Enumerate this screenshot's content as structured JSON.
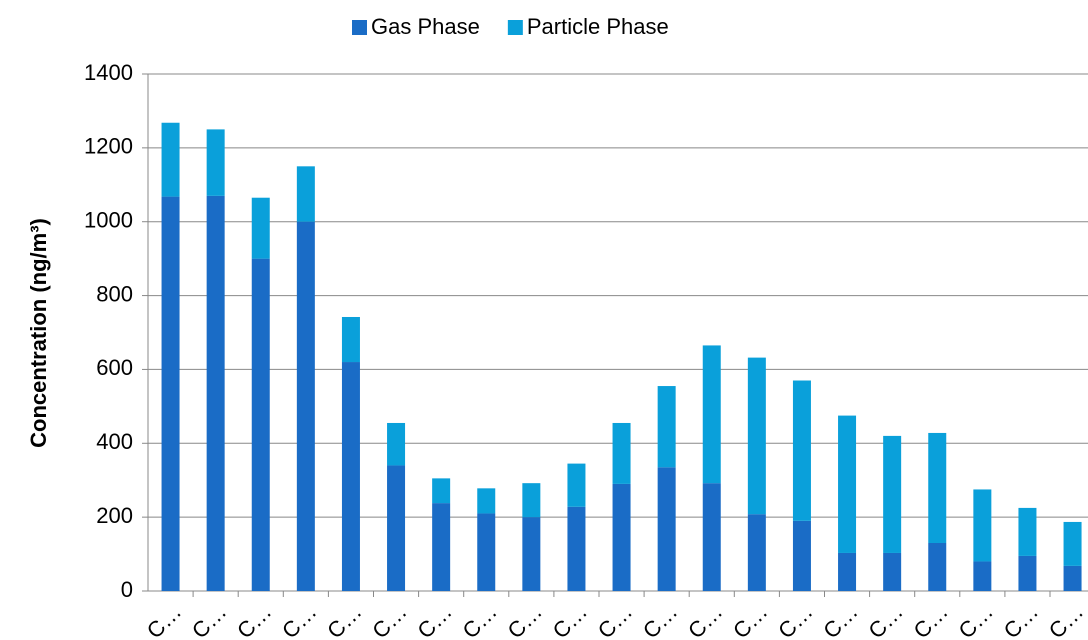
{
  "chart_data": {
    "type": "bar",
    "stacked": true,
    "y_label": "Concentration (ng/m³)",
    "categories": [
      "C…",
      "C…",
      "C…",
      "C…",
      "C…",
      "C…",
      "C…",
      "C…",
      "C…",
      "C…",
      "C…",
      "C…",
      "C…",
      "C…",
      "C…",
      "C…",
      "C…",
      "C…",
      "C…",
      "C…",
      "C…"
    ],
    "series": [
      {
        "name": "Gas Phase",
        "color": "#1a6cc6",
        "values": [
          1068,
          1070,
          900,
          1000,
          620,
          340,
          238,
          210,
          200,
          228,
          290,
          335,
          292,
          208,
          190,
          103,
          103,
          130,
          80,
          95,
          68
        ]
      },
      {
        "name": "Particle Phase",
        "color": "#0aa0da",
        "values": [
          200,
          180,
          165,
          150,
          122,
          115,
          67,
          68,
          92,
          117,
          165,
          220,
          373,
          424,
          380,
          372,
          317,
          298,
          195,
          130,
          119
        ]
      }
    ],
    "ylim": [
      0,
      1400
    ],
    "yticks": [
      0,
      200,
      400,
      600,
      800,
      1000,
      1200,
      1400
    ],
    "grid": true,
    "legend": "top"
  }
}
